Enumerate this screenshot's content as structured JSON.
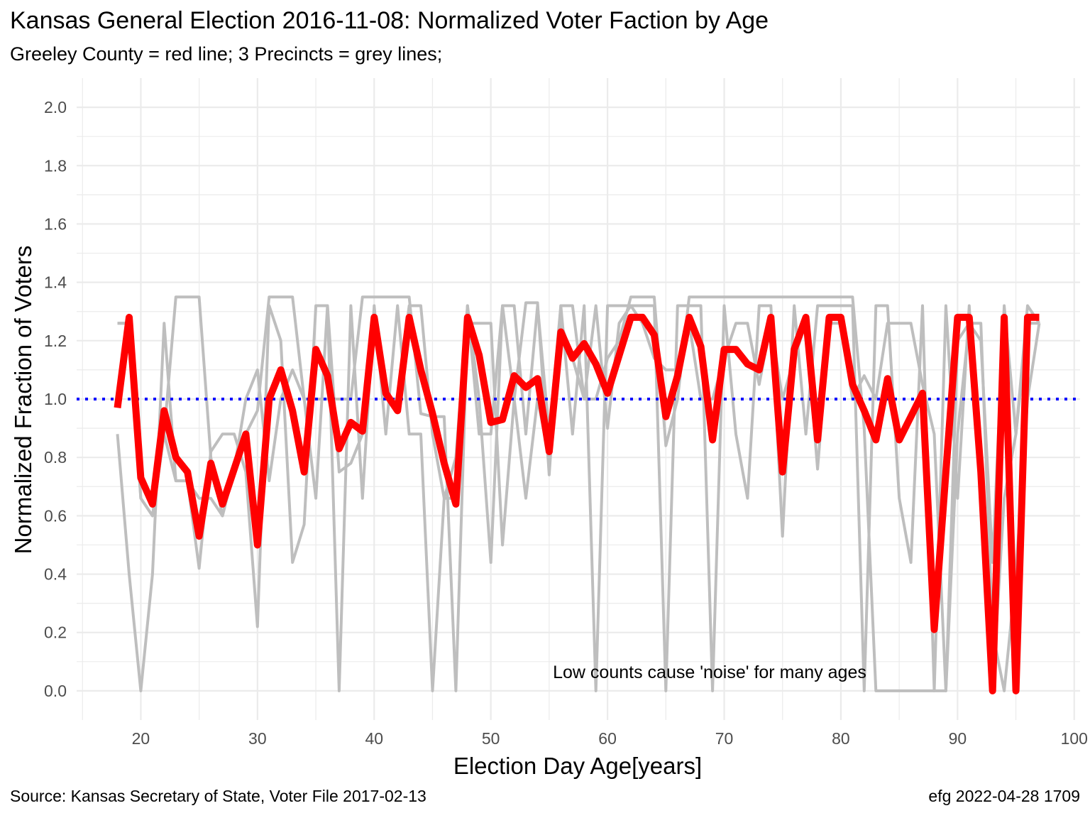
{
  "chart_data": {
    "type": "line",
    "title": "Kansas General Election 2016-11-08:  Normalized Voter Faction by Age",
    "subtitle": "Greeley County = red line; 3 Precincts = grey lines;",
    "xlabel": "Election Day Age[years]",
    "ylabel": "Normalized Fraction of Voters",
    "caption_left": "Source:  Kansas Secretary of State, Voter File  2017-02-13",
    "caption_right": "efg 2022-04-28 1709",
    "annotation": "Low counts cause 'noise' for many ages",
    "xlim": [
      14.5,
      100.5
    ],
    "ylim": [
      -0.1,
      2.1
    ],
    "x_ticks": [
      20,
      30,
      40,
      50,
      60,
      70,
      80,
      90,
      100
    ],
    "x_tick_labels": [
      "20",
      "30",
      "40",
      "50",
      "60",
      "70",
      "80",
      "90",
      "100"
    ],
    "y_ticks": [
      0.0,
      0.2,
      0.4,
      0.6,
      0.8,
      1.0,
      1.2,
      1.4,
      1.6,
      1.8,
      2.0
    ],
    "y_tick_labels": [
      "0.0",
      "0.2",
      "0.4",
      "0.6",
      "0.8",
      "1.0",
      "1.2",
      "1.4",
      "1.6",
      "1.8",
      "2.0"
    ],
    "reference_line": {
      "y": 1.0,
      "color": "#0000ff",
      "style": "dotted"
    },
    "grid": true,
    "colors": {
      "county": "#ff0000",
      "precinct": "#bebebe",
      "grid": "#ebebeb"
    },
    "series": [
      {
        "role": "county",
        "x": [
          18,
          19,
          20,
          21,
          22,
          23,
          24,
          25,
          26,
          27,
          28,
          29,
          30,
          31,
          32,
          33,
          34,
          35,
          36,
          37,
          38,
          39,
          40,
          41,
          42,
          43,
          44,
          45,
          46,
          47,
          48,
          49,
          50,
          51,
          52,
          53,
          54,
          55,
          56,
          57,
          58,
          59,
          60,
          61,
          62,
          63,
          64,
          65,
          66,
          67,
          68,
          69,
          70,
          71,
          72,
          73,
          74,
          75,
          76,
          77,
          78,
          79,
          80,
          81,
          82,
          83,
          84,
          85,
          86,
          87,
          88,
          89,
          90,
          91,
          92,
          93,
          94,
          95,
          96,
          97
        ],
        "values": [
          0.97,
          1.28,
          0.73,
          0.64,
          0.96,
          0.8,
          0.75,
          0.53,
          0.78,
          0.64,
          0.76,
          0.88,
          0.5,
          1.0,
          1.1,
          0.96,
          0.75,
          1.17,
          1.08,
          0.83,
          0.92,
          0.89,
          1.28,
          1.02,
          0.96,
          1.28,
          1.1,
          0.95,
          0.78,
          0.64,
          1.28,
          1.15,
          0.92,
          0.93,
          1.08,
          1.04,
          1.07,
          0.82,
          1.23,
          1.14,
          1.19,
          1.12,
          1.02,
          1.15,
          1.28,
          1.28,
          1.22,
          0.94,
          1.08,
          1.28,
          1.18,
          0.86,
          1.17,
          1.17,
          1.12,
          1.1,
          1.28,
          0.75,
          1.17,
          1.28,
          0.86,
          1.28,
          1.28,
          1.05,
          0.96,
          0.86,
          1.07,
          0.86,
          0.94,
          1.02,
          0.21,
          0.75,
          1.28,
          1.28,
          0.75,
          0.0,
          1.28,
          0.0,
          1.28,
          1.28
        ]
      },
      {
        "role": "precinct",
        "x": [
          18,
          19,
          20,
          21,
          22,
          23,
          24,
          25,
          26,
          27,
          28,
          29,
          30,
          31,
          32,
          33,
          34,
          35,
          36,
          37,
          38,
          39,
          40,
          41,
          42,
          43,
          44,
          45,
          46,
          47,
          48,
          49,
          50,
          51,
          52,
          53,
          54,
          55,
          56,
          57,
          58,
          59,
          60,
          61,
          62,
          63,
          64,
          65,
          66,
          67,
          68,
          69,
          70,
          71,
          72,
          73,
          74,
          75,
          76,
          77,
          78,
          79,
          80,
          81,
          82,
          83,
          84,
          85,
          86,
          87,
          88,
          89,
          90,
          91,
          92,
          93,
          94,
          95,
          96,
          97
        ],
        "values": [
          0.88,
          0.4,
          0.0,
          0.4,
          1.26,
          0.72,
          0.72,
          0.42,
          0.82,
          0.88,
          0.88,
          0.75,
          0.22,
          1.32,
          1.2,
          0.44,
          0.57,
          1.32,
          1.32,
          0.0,
          1.32,
          0.66,
          1.32,
          0.88,
          1.32,
          0.88,
          0.88,
          0.0,
          0.66,
          0.66,
          1.32,
          0.88,
          0.88,
          1.32,
          1.32,
          0.88,
          1.32,
          0.88,
          1.32,
          0.88,
          1.32,
          0.0,
          1.32,
          1.32,
          1.32,
          1.32,
          1.32,
          0.0,
          1.32,
          1.32,
          1.32,
          0.0,
          1.32,
          0.88,
          0.66,
          1.32,
          1.32,
          0.53,
          1.32,
          0.88,
          1.32,
          1.32,
          1.32,
          1.32,
          0.0,
          1.32,
          1.32,
          0.66,
          0.44,
          1.32,
          0.0,
          1.32,
          0.66,
          1.32,
          0.66,
          0.0,
          0.66,
          0.88,
          1.32,
          1.26
        ]
      },
      {
        "role": "precinct",
        "x": [
          18,
          19,
          20,
          21,
          22,
          23,
          24,
          25,
          26,
          27,
          28,
          29,
          30,
          31,
          32,
          33,
          34,
          35,
          36,
          37,
          38,
          39,
          40,
          41,
          42,
          43,
          44,
          45,
          46,
          47,
          48,
          49,
          50,
          51,
          52,
          53,
          54,
          55,
          56,
          57,
          58,
          59,
          60,
          61,
          62,
          63,
          64,
          65,
          66,
          67,
          68,
          69,
          70,
          71,
          72,
          73,
          74,
          75,
          76,
          77,
          78,
          79,
          80,
          81,
          82,
          83,
          84,
          85,
          86,
          87,
          88,
          89,
          90,
          91,
          92,
          93,
          94,
          95,
          96,
          97
        ],
        "values": [
          1.26,
          1.26,
          0.66,
          0.6,
          0.88,
          1.35,
          1.35,
          1.35,
          0.8,
          0.6,
          0.76,
          0.88,
          0.96,
          1.35,
          1.35,
          1.35,
          1.0,
          1.0,
          1.0,
          1.0,
          1.0,
          1.35,
          1.35,
          1.35,
          1.35,
          1.35,
          0.95,
          0.94,
          0.94,
          0.0,
          1.26,
          1.26,
          1.26,
          0.5,
          1.0,
          1.33,
          1.33,
          0.74,
          1.32,
          1.32,
          1.0,
          1.0,
          1.14,
          1.2,
          1.35,
          1.35,
          1.35,
          0.84,
          1.0,
          1.35,
          1.35,
          1.35,
          1.35,
          1.35,
          1.35,
          1.35,
          1.35,
          1.35,
          1.35,
          1.35,
          1.35,
          1.35,
          1.35,
          1.35,
          0.9,
          0.0,
          0.0,
          0.0,
          0.0,
          0.0,
          0.0,
          0.0,
          1.2,
          1.26,
          1.2,
          0.44,
          1.32,
          0.88,
          1.26,
          1.26
        ]
      },
      {
        "role": "precinct",
        "x": [
          18,
          19,
          20,
          21,
          22,
          23,
          24,
          25,
          26,
          27,
          28,
          29,
          30,
          31,
          32,
          33,
          34,
          35,
          36,
          37,
          38,
          39,
          40,
          41,
          42,
          43,
          44,
          45,
          46,
          47,
          48,
          49,
          50,
          51,
          52,
          53,
          54,
          55,
          56,
          57,
          58,
          59,
          60,
          61,
          62,
          63,
          64,
          65,
          66,
          67,
          68,
          69,
          70,
          71,
          72,
          73,
          74,
          75,
          76,
          77,
          78,
          79,
          80,
          81,
          82,
          83,
          84,
          85,
          86,
          87,
          88,
          89,
          90,
          91,
          92,
          93,
          94,
          95,
          96,
          97
        ],
        "values": [
          1.26,
          1.26,
          0.66,
          0.6,
          0.88,
          0.72,
          0.72,
          0.66,
          0.66,
          0.6,
          0.76,
          1.0,
          1.1,
          0.72,
          1.0,
          1.1,
          1.0,
          0.66,
          1.32,
          0.75,
          0.78,
          0.88,
          1.26,
          1.0,
          1.0,
          1.32,
          1.32,
          0.88,
          0.66,
          0.8,
          1.32,
          1.0,
          0.44,
          1.32,
          1.0,
          0.66,
          1.0,
          0.8,
          1.26,
          1.14,
          1.0,
          1.32,
          0.9,
          1.26,
          1.32,
          1.26,
          1.14,
          1.1,
          1.1,
          1.26,
          1.0,
          1.0,
          1.14,
          1.26,
          1.26,
          1.05,
          1.26,
          1.0,
          1.14,
          1.26,
          0.76,
          1.26,
          1.26,
          1.0,
          1.08,
          1.0,
          1.26,
          1.26,
          1.26,
          1.05,
          0.88,
          0.0,
          0.88,
          1.26,
          1.26,
          0.2,
          0.0,
          0.4,
          1.0,
          1.26
        ]
      }
    ]
  }
}
